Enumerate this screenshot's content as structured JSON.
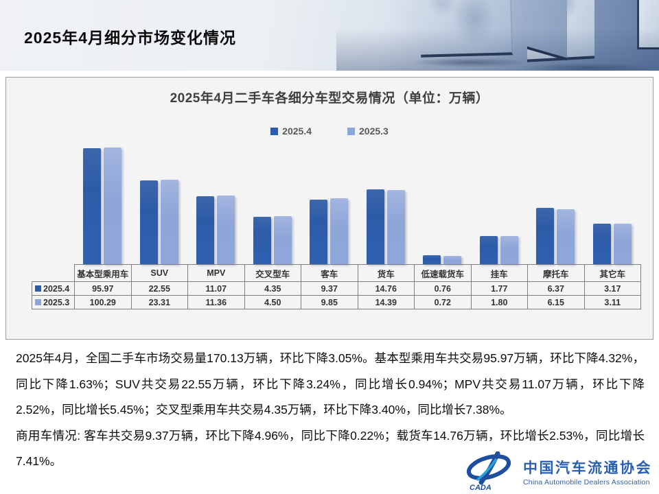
{
  "header": {
    "title": "2025年4月细分市场变化情况"
  },
  "chart": {
    "title": "2025年4月二手车各细分车型交易情况（单位：万辆）",
    "colors": {
      "series1": "#2d5ba8",
      "series2": "#8ea5d8"
    },
    "chart_data": {
      "type": "bar",
      "title": "2025年4月二手车各细分车型交易情况（单位：万辆）",
      "unit": "万辆",
      "categories": [
        "基本型乘用车",
        "SUV",
        "MPV",
        "交叉型车",
        "客车",
        "货车",
        "低速载货车",
        "挂车",
        "摩托车",
        "其它车"
      ],
      "series": [
        {
          "name": "2025.4",
          "values": [
            95.97,
            22.55,
            11.07,
            4.35,
            9.37,
            14.76,
            0.76,
            1.77,
            6.37,
            3.17
          ]
        },
        {
          "name": "2025.3",
          "values": [
            100.29,
            23.31,
            11.36,
            4.5,
            9.85,
            14.39,
            0.72,
            1.8,
            6.15,
            3.11
          ]
        }
      ],
      "legend_position": "top",
      "grid": false,
      "y_scale": "log",
      "y_min": 0.5,
      "data_table_shown": true
    }
  },
  "text": {
    "para1": "2025年4月，全国二手车市场交易量170.13万辆，环比下降3.05%。基本型乘用车共交易95.97万辆，环比下降4.32%，同比下降1.63%；SUV共交易22.55万辆，环比下降3.24%，同比增长0.94%；MPV共交易11.07万辆，环比下降2.52%，同比增长5.45%；交叉型乘用车共交易4.35万辆，环比下降3.40%，同比增长7.38%。",
    "para2": "商用车情况: 客车共交易9.37万辆，环比下降4.96%，同比下降0.22%；载货车14.76万辆，环比增长2.53%，同比增长7.41%。"
  },
  "logo": {
    "mark": "CADA",
    "org_cn": "中国汽车流通协会",
    "org_en": "China Automobile Dealers Association",
    "color_primary": "#1d4f9e",
    "color_text": "#2a5faf",
    "color_accent": "#2aa0dc"
  }
}
